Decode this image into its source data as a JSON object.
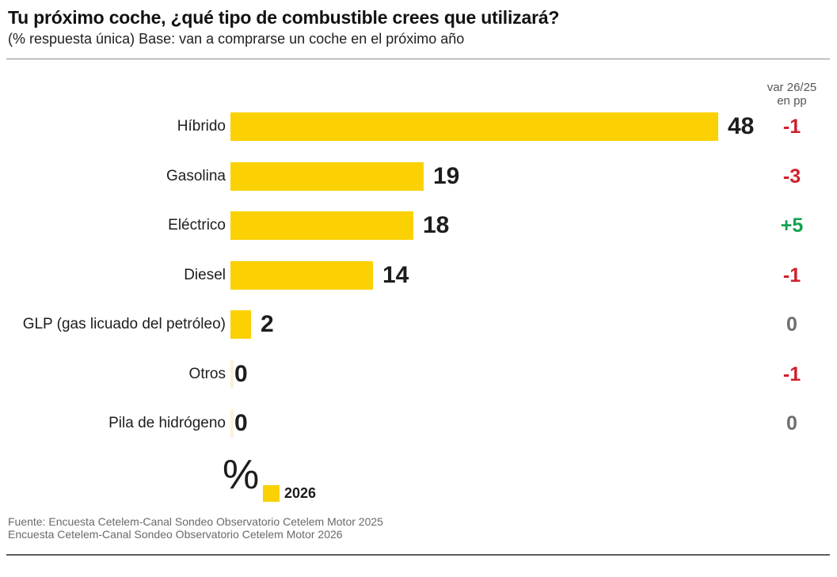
{
  "header": {
    "title": "Tu próximo coche, ¿qué tipo de combustible crees que utilizará?",
    "subtitle": "(% respuesta única) Base: van a comprarse un coche en el próximo año"
  },
  "chart_data": {
    "type": "bar",
    "orientation": "horizontal",
    "title": "Tu próximo coche, ¿qué tipo de combustible crees que utilizará?",
    "subtitle": "(% respuesta única) Base: van a comprarse un coche en el próximo año",
    "unit": "%",
    "categories": [
      "Híbrido",
      "Gasolina",
      "Eléctrico",
      "Diesel",
      "GLP (gas licuado del petróleo)",
      "Otros",
      "Pila de hidrógeno"
    ],
    "series": [
      {
        "name": "2026",
        "values": [
          48,
          19,
          18,
          14,
          2,
          0,
          0
        ]
      }
    ],
    "variation_column": {
      "header_line1": "var 26/25",
      "header_line2": "en pp",
      "values": [
        "-1",
        "-3",
        "+5",
        "-1",
        "0",
        "-1",
        "0"
      ]
    },
    "xlim": [
      0,
      48
    ],
    "grid": false,
    "value_labels": true,
    "legend_position": "bottom"
  },
  "legend": {
    "unit_symbol": "%",
    "entries": [
      {
        "label": "2026",
        "color": "#fbd104"
      }
    ]
  },
  "footer": {
    "line1": "Fuente: Encuesta Cetelem-Canal Sondeo Observatorio Cetelem Motor 2025",
    "line2": "Encuesta Cetelem-Canal Sondeo Observatorio Cetelem Motor 2026"
  },
  "colors": {
    "bar_yellow": "#fbd104",
    "bar_zero_pale": "#faf3d9",
    "negative_red": "#d01f2b",
    "positive_green": "#13a24e",
    "zero_gray": "#6d6e71",
    "text_black": "#1d1d1b",
    "header_gray": "#55565a",
    "footer_gray": "#6a6a6a"
  }
}
